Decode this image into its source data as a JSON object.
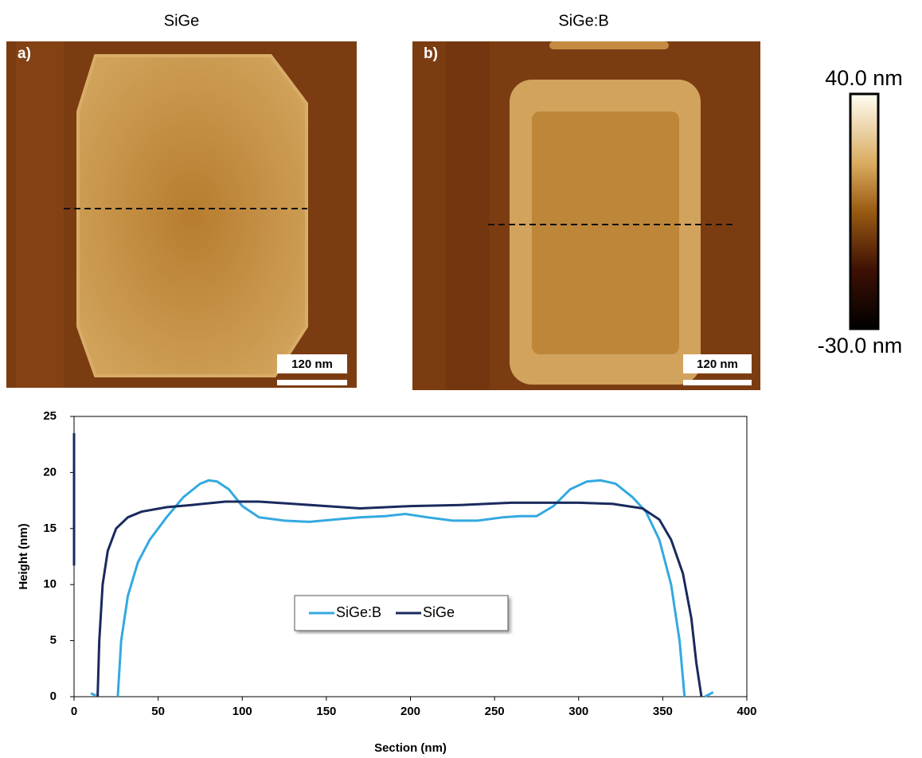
{
  "panels": [
    {
      "title": "SiGe",
      "label": "a)",
      "scale_bar": "120 nm"
    },
    {
      "title": "SiGe:B",
      "label": "b)",
      "scale_bar": "120 nm"
    }
  ],
  "colorbar": {
    "max_label": "40.0 nm",
    "min_label": "-30.0 nm"
  },
  "chart_data": {
    "type": "line",
    "x_label": "Section (nm)",
    "y_label": "Height (nm)",
    "xlim": [
      0,
      400
    ],
    "xticks": [
      0,
      50,
      100,
      150,
      200,
      250,
      300,
      350,
      400
    ],
    "ylim": [
      0,
      25
    ],
    "yticks": [
      0,
      5,
      10,
      15,
      20,
      25
    ],
    "grid": false,
    "legend": "center",
    "series": [
      {
        "name": "SiGe:B",
        "color": "#33a9e0",
        "x": [
          10,
          13,
          null,
          26,
          28,
          32,
          38,
          45,
          55,
          65,
          75,
          80,
          85,
          92,
          100,
          110,
          125,
          140,
          155,
          170,
          185,
          197,
          210,
          225,
          240,
          255,
          265,
          275,
          285,
          295,
          305,
          313,
          322,
          332,
          340,
          348,
          355,
          360,
          363,
          null,
          375,
          380
        ],
        "values": [
          0.3,
          0.1,
          null,
          0,
          5,
          9,
          12,
          14,
          16,
          17.8,
          19,
          19.3,
          19.2,
          18.5,
          17,
          16,
          15.7,
          15.6,
          15.8,
          16,
          16.1,
          16.3,
          16,
          15.7,
          15.7,
          16,
          16.1,
          16.1,
          17,
          18.5,
          19.2,
          19.3,
          19,
          17.8,
          16.5,
          14,
          10,
          5,
          0,
          null,
          0,
          0.4
        ]
      },
      {
        "name": "SiGe",
        "color": "#1a2a5e",
        "x": [
          0,
          0,
          null,
          14,
          15,
          17,
          20,
          25,
          32,
          40,
          55,
          70,
          90,
          110,
          130,
          150,
          170,
          200,
          230,
          260,
          280,
          300,
          320,
          338,
          348,
          355,
          362,
          367,
          370,
          373
        ],
        "values": [
          23.5,
          11.7,
          null,
          0,
          5,
          10,
          13,
          15,
          16,
          16.5,
          16.9,
          17.1,
          17.4,
          17.4,
          17.2,
          17,
          16.8,
          17,
          17.1,
          17.3,
          17.3,
          17.3,
          17.2,
          16.8,
          15.8,
          14,
          11,
          7,
          3,
          0
        ]
      }
    ]
  }
}
